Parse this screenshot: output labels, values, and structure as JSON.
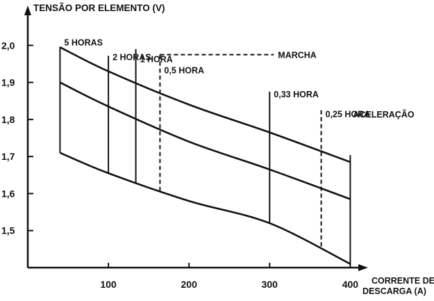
{
  "chart_data": {
    "type": "line",
    "ylabel": "TENSÃO POR ELEMENTO (V)",
    "xlabel": [
      "CORRENTE DE",
      "DESCARGA (A)"
    ],
    "xlim": [
      0,
      410
    ],
    "ylim": [
      1.4,
      2.1
    ],
    "x_ticks": [
      100,
      200,
      300,
      400
    ],
    "y_ticks": [
      1.5,
      1.6,
      1.7,
      1.8,
      1.9,
      2.0
    ],
    "y_tick_labels": [
      "1,5",
      "1,6",
      "1,7",
      "1,8",
      "1,9",
      "2,0"
    ],
    "grid": false,
    "side_labels": [
      "MARCHA",
      "ACELERAÇÃO"
    ],
    "curves": [
      {
        "x": [
          40,
          100,
          200,
          300,
          400
        ],
        "y": [
          1.995,
          1.93,
          1.84,
          1.765,
          1.685
        ]
      },
      {
        "x": [
          40,
          100,
          200,
          300,
          400
        ],
        "y": [
          1.9,
          1.835,
          1.74,
          1.665,
          1.585
        ]
      },
      {
        "x": [
          40,
          100,
          200,
          300,
          400
        ],
        "y": [
          1.71,
          1.655,
          1.58,
          1.52,
          1.41
        ]
      }
    ],
    "durations": [
      {
        "label": "5 HORAS",
        "x": 40,
        "line_top": 1.94,
        "line_style": "solid",
        "label_y": 2.0
      },
      {
        "label": "2 HORAS",
        "x": 100,
        "line_top": 1.972,
        "line_style": "solid",
        "label_y": 1.96
      },
      {
        "label": "1 HORA",
        "x": 134,
        "line_top": 1.99,
        "line_style": "solid",
        "label_y": 1.955
      },
      {
        "label": "0,5 HORA",
        "x": 164,
        "line_top": 1.975,
        "line_style": "dashed",
        "label_y": 1.925
      },
      {
        "label": "0,33 HORA",
        "x": 300,
        "line_top": 1.875,
        "line_style": "solid",
        "label_y": 1.86
      },
      {
        "label": "0,25 HORA",
        "x": 364,
        "line_top": 1.825,
        "line_style": "dashed",
        "label_y": 1.806
      }
    ],
    "marcha_bracket": {
      "x_from": 164,
      "x_to": 300,
      "y": 1.975
    },
    "aceleracao_x": 400
  }
}
